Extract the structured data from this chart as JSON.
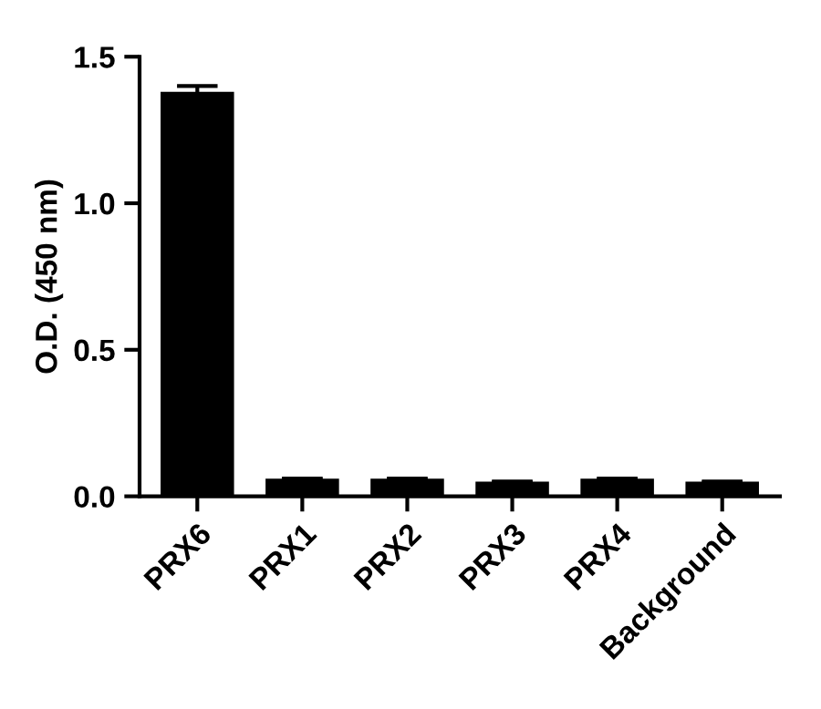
{
  "chart_data": {
    "type": "bar",
    "ylabel": "O.D. (450 nm)",
    "categories": [
      "PRX6",
      "PRX1",
      "PRX2",
      "PRX3",
      "PRX4",
      "Background"
    ],
    "values": [
      1.38,
      0.06,
      0.06,
      0.05,
      0.06,
      0.05
    ],
    "errors": [
      0.02,
      null,
      null,
      null,
      null,
      null
    ],
    "color": "#000000",
    "ylim": [
      0,
      1.5
    ],
    "yticks": [
      {
        "value": 0,
        "label": "0.0"
      },
      0.5,
      {
        "value": 1,
        "label": "1.0"
      },
      1.5
    ],
    "grid": false
  }
}
